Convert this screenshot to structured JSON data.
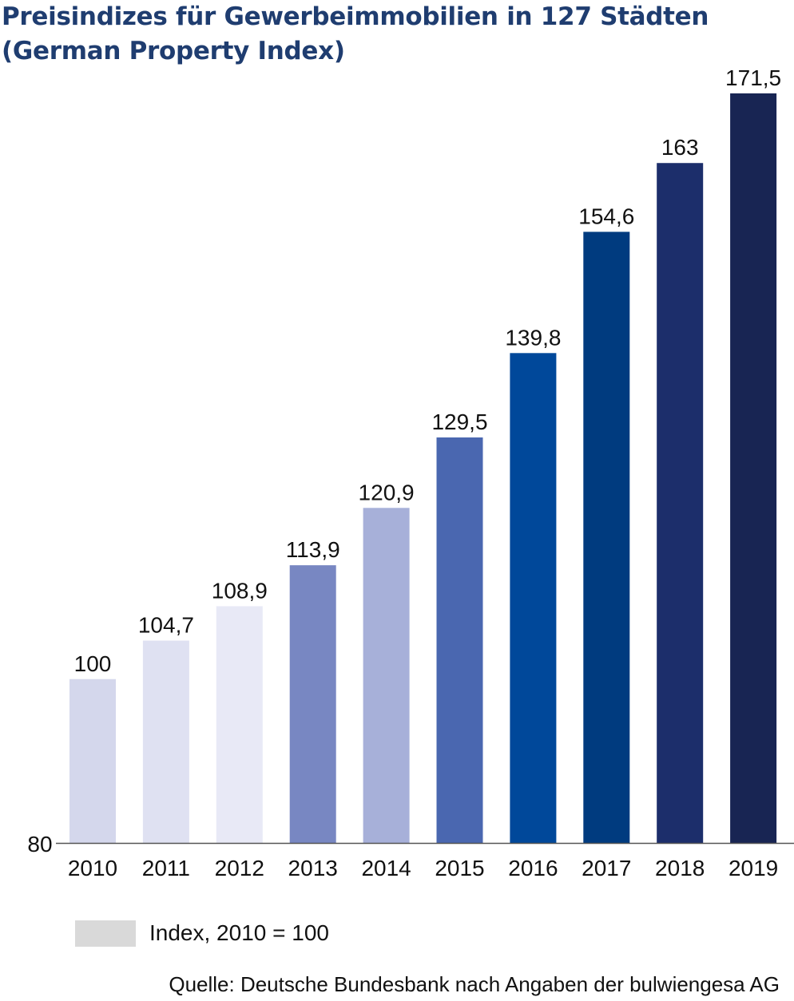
{
  "chart_data": {
    "type": "bar",
    "title_line1": "Preisindizes für Gewerbeimmobilien in 127 Städten",
    "title_line2": "(German Property Index)",
    "categories": [
      "2010",
      "2011",
      "2012",
      "2013",
      "2014",
      "2015",
      "2016",
      "2017",
      "2018",
      "2019"
    ],
    "values": [
      100,
      104.7,
      108.9,
      113.9,
      120.9,
      129.5,
      139.8,
      154.6,
      163,
      171.5
    ],
    "value_labels": [
      "100",
      "104,7",
      "108,9",
      "113,9",
      "120,9",
      "129,5",
      "139,8",
      "154,6",
      "163",
      "171,5"
    ],
    "bar_colors": [
      "#d4d7ec",
      "#dfe1f2",
      "#e8e9f6",
      "#7887c2",
      "#a7b0d9",
      "#4a67b0",
      "#00489a",
      "#003b7f",
      "#1c2e6b",
      "#182553"
    ],
    "ylim": [
      80,
      175
    ],
    "y_tick_label": "80",
    "grid": false,
    "legend": {
      "label": "Index, 2010 = 100",
      "swatch_color": "#d9d9d9",
      "position": "bottom-left"
    },
    "source": "Quelle: Deutsche Bundesbank nach Angaben der bulwiengesa AG"
  }
}
